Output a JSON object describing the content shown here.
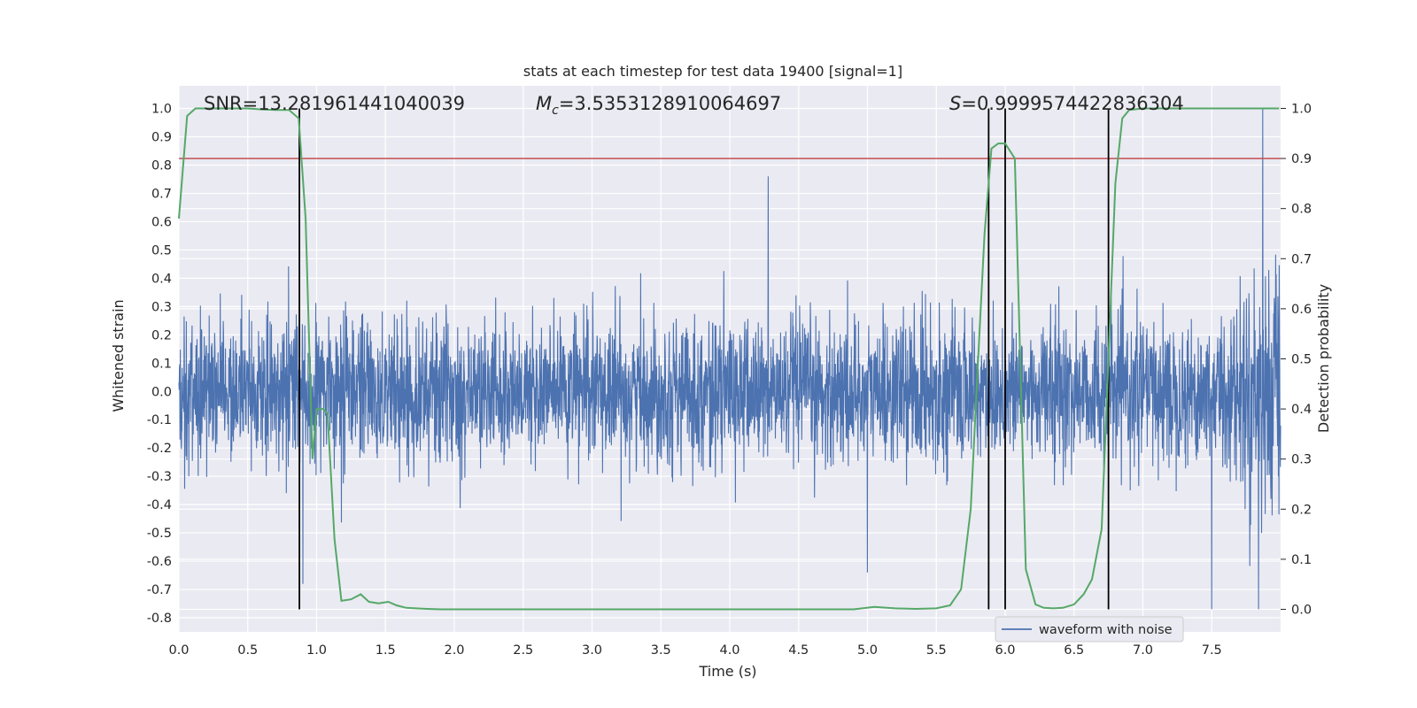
{
  "chart_data": {
    "type": "line",
    "title": "stats at each timestep for test data 19400 [signal=1]",
    "xlabel": "Time (s)",
    "ylabel_left": "Whitened strain",
    "ylabel_right": "Detection probability",
    "xlim": [
      0.0,
      8.0
    ],
    "ylim_left": [
      -0.85,
      1.08
    ],
    "ylim_right": [
      -0.045,
      1.045
    ],
    "x_ticks": [
      "0.0",
      "0.5",
      "1.0",
      "1.5",
      "2.0",
      "2.5",
      "3.0",
      "3.5",
      "4.0",
      "4.5",
      "5.0",
      "5.5",
      "6.0",
      "6.5",
      "7.0",
      "7.5"
    ],
    "y_left_ticks": [
      "-0.8",
      "-0.7",
      "-0.6",
      "-0.5",
      "-0.4",
      "-0.3",
      "-0.2",
      "-0.1",
      "0.0",
      "0.1",
      "0.2",
      "0.3",
      "0.4",
      "0.5",
      "0.6",
      "0.7",
      "0.8",
      "0.9",
      "1.0"
    ],
    "y_right_ticks": [
      "0.0",
      "0.1",
      "0.2",
      "0.3",
      "0.4",
      "0.5",
      "0.6",
      "0.7",
      "0.8",
      "0.9",
      "1.0"
    ],
    "grid": true,
    "legend_position": "lower-right",
    "annotations": {
      "snr": "SNR=13.281961441040039",
      "mc_symbol": "M",
      "mc_subscript": "c",
      "mc_value": "=3.5353128910064697",
      "s_symbol": "S",
      "s_value": "=0.9999574422836304"
    },
    "series": [
      {
        "name": "waveform with noise",
        "color": "#4c72b0",
        "axis": "left",
        "description_values": "noisy whitened strain sampled over 0-8 s, mostly within ±0.3 with peaks near 0.75 at 4.28 s and 1.0 at 7.87 s",
        "spikes": [
          {
            "x": 4.28,
            "y": 0.76
          },
          {
            "x": 7.87,
            "y": 1.0
          },
          {
            "x": 7.84,
            "y": -0.77
          },
          {
            "x": 7.5,
            "y": -0.77
          },
          {
            "x": 5.0,
            "y": -0.64
          },
          {
            "x": 0.9,
            "y": -0.68
          }
        ]
      },
      {
        "name": "detection probability",
        "color": "#55a868",
        "axis": "right",
        "x": [
          0.0,
          0.06,
          0.12,
          0.2,
          0.3,
          0.4,
          0.5,
          0.6,
          0.7,
          0.8,
          0.87,
          0.92,
          0.97,
          1.0,
          1.05,
          1.08,
          1.13,
          1.18,
          1.25,
          1.32,
          1.38,
          1.45,
          1.52,
          1.58,
          1.65,
          1.72,
          1.8,
          1.9,
          2.0,
          2.5,
          3.0,
          3.5,
          4.0,
          4.5,
          4.9,
          5.05,
          5.2,
          5.35,
          5.5,
          5.6,
          5.68,
          5.75,
          5.8,
          5.85,
          5.9,
          5.95,
          6.0,
          6.07,
          6.15,
          6.22,
          6.28,
          6.35,
          6.42,
          6.5,
          6.57,
          6.63,
          6.7,
          6.75,
          6.8,
          6.85,
          6.9,
          7.0,
          7.5,
          7.99
        ],
        "y": [
          0.78,
          0.985,
          1.0,
          1.0,
          1.0,
          1.0,
          1.0,
          0.998,
          0.997,
          0.997,
          0.98,
          0.78,
          0.3,
          0.4,
          0.4,
          0.39,
          0.14,
          0.017,
          0.02,
          0.03,
          0.015,
          0.012,
          0.015,
          0.008,
          0.003,
          0.002,
          0.001,
          0.0,
          0.0,
          0.0,
          0.0,
          0.0,
          0.0,
          0.0,
          0.0,
          0.005,
          0.002,
          0.001,
          0.002,
          0.008,
          0.04,
          0.2,
          0.48,
          0.75,
          0.92,
          0.93,
          0.93,
          0.9,
          0.08,
          0.01,
          0.003,
          0.002,
          0.003,
          0.01,
          0.03,
          0.06,
          0.16,
          0.5,
          0.85,
          0.98,
          0.997,
          1.0,
          1.0,
          1.0
        ]
      }
    ],
    "threshold_line": {
      "y_right": 0.9,
      "color": "#c44e52"
    },
    "vertical_markers": {
      "x": [
        0.875,
        5.88,
        6.0,
        6.75
      ],
      "y_right_range": [
        0.0,
        1.0
      ],
      "color": "#000000"
    },
    "legend": [
      {
        "label": "waveform with noise",
        "color": "#4c72b0"
      }
    ]
  }
}
